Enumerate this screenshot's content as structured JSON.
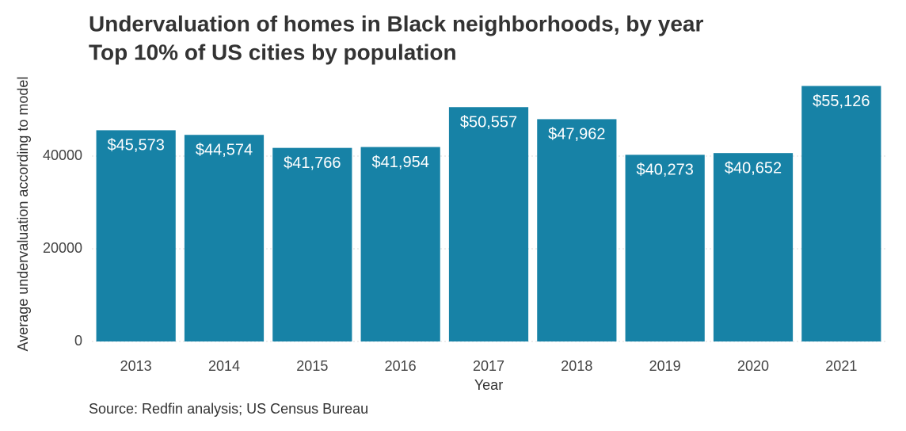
{
  "chart_data": {
    "type": "bar",
    "title": "Undervaluation of homes in Black neighborhoods, by year",
    "subtitle": "Top 10% of US cities by population",
    "x_label": "Year",
    "y_label": "Average undervaluation according to model",
    "source": "Source: Redfin analysis; US Census Bureau",
    "categories": [
      "2013",
      "2014",
      "2015",
      "2016",
      "2017",
      "2018",
      "2019",
      "2020",
      "2021"
    ],
    "values": [
      45573,
      44574,
      41766,
      41954,
      50557,
      47962,
      40273,
      40652,
      55126
    ],
    "value_labels": [
      "$45,573",
      "$44,574",
      "$41,766",
      "$41,954",
      "$50,557",
      "$47,962",
      "$40,273",
      "$40,652",
      "$55,126"
    ],
    "color": "#1782a6",
    "ylim": [
      0,
      56000
    ],
    "yticks": [
      0,
      20000,
      40000
    ],
    "grid": true
  }
}
